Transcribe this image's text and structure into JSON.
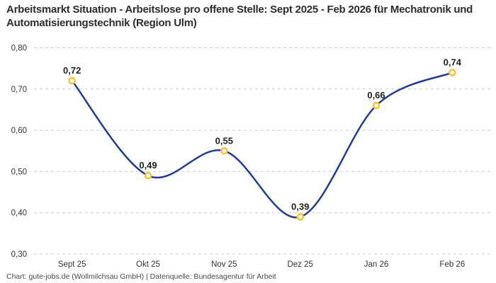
{
  "title": "Arbeitsmarkt Situation - Arbeitslose pro offene Stelle: Sept 2025 - Feb 2026 für Mechatronik und Automatisierungstechnik (Region Ulm)",
  "footer": "Chart: gute-jobs.de (Wollmilchsau GmbH) | Datenquelle: Bundesagentur für Arbeit",
  "chart_data": {
    "type": "line",
    "title": "Arbeitsmarkt Situation - Arbeitslose pro offene Stelle: Sept 2025 - Feb 2026 für Mechatronik und Automatisierungstechnik (Region Ulm)",
    "categories": [
      "Sept 25",
      "Okt 25",
      "Nov 25",
      "Dez 25",
      "Jan 26",
      "Feb 26"
    ],
    "values": [
      0.72,
      0.49,
      0.55,
      0.39,
      0.66,
      0.74
    ],
    "value_labels": [
      "0,72",
      "0,49",
      "0,55",
      "0,39",
      "0,66",
      "0,74"
    ],
    "xlabel": "",
    "ylabel": "",
    "ylim": [
      0.3,
      0.8
    ],
    "yticks": [
      0.3,
      0.4,
      0.5,
      0.6,
      0.7,
      0.8
    ],
    "ytick_labels": [
      "0,30",
      "0,40",
      "0,50",
      "0,60",
      "0,70",
      "0,80"
    ],
    "grid": "horizontal-dashed",
    "legend": "none",
    "line_style": "smooth-spline",
    "colors": {
      "line": "#223a9b",
      "marker_stroke": "#fdc228",
      "marker_fill": "#ffffff",
      "grid": "#cccccc",
      "title_text": "#2d2d2d",
      "label_text": "#1f1f1f",
      "axis_text": "#333333",
      "footer_text": "#4a4a4a",
      "background": "#ffffff"
    }
  }
}
